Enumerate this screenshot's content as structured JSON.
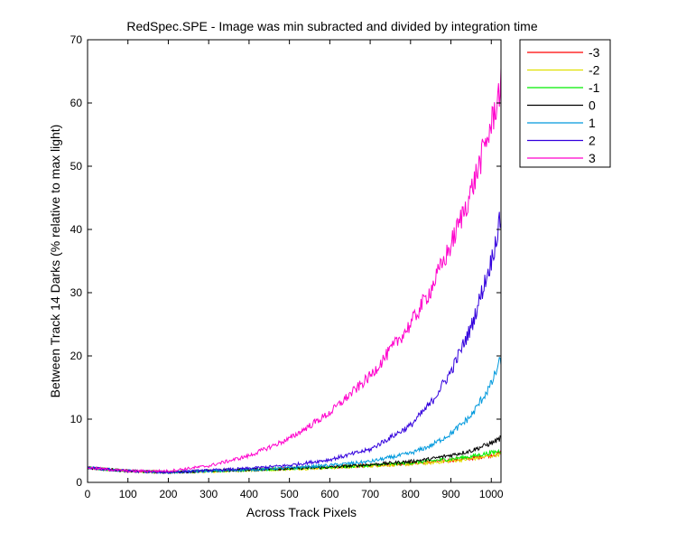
{
  "chart_data": {
    "type": "line",
    "title": "RedSpec.SPE - Image was min subracted and divided by integration time",
    "xlabel": "Across Track Pixels",
    "ylabel": "Between Track 14 Darks (% relative to max light)",
    "xlim": [
      0,
      1024
    ],
    "ylim": [
      0,
      70
    ],
    "xticks": [
      0,
      100,
      200,
      300,
      400,
      500,
      600,
      700,
      800,
      900,
      1000
    ],
    "yticks": [
      0,
      10,
      20,
      30,
      40,
      50,
      60,
      70
    ],
    "grid": false,
    "legend_position": "outside top-right",
    "series": [
      {
        "name": "-3",
        "color": "#ff0000",
        "x": [
          0,
          100,
          200,
          300,
          400,
          500,
          600,
          700,
          800,
          850,
          900,
          950,
          1000,
          1024
        ],
        "y": [
          2.3,
          1.8,
          1.6,
          1.8,
          2.0,
          2.2,
          2.4,
          2.7,
          3.0,
          3.2,
          3.5,
          3.8,
          4.3,
          4.6
        ]
      },
      {
        "name": "-2",
        "color": "#e0e000",
        "x": [
          0,
          100,
          200,
          300,
          400,
          500,
          600,
          700,
          800,
          850,
          900,
          950,
          1000,
          1024
        ],
        "y": [
          2.3,
          1.8,
          1.6,
          1.7,
          1.9,
          2.1,
          2.3,
          2.6,
          2.9,
          3.1,
          3.4,
          3.7,
          4.2,
          4.5
        ]
      },
      {
        "name": "-1",
        "color": "#00ee00",
        "x": [
          0,
          100,
          200,
          300,
          400,
          500,
          600,
          700,
          800,
          850,
          900,
          950,
          1000,
          1024
        ],
        "y": [
          2.3,
          1.8,
          1.6,
          1.8,
          2.0,
          2.2,
          2.4,
          2.7,
          3.1,
          3.4,
          3.7,
          4.1,
          4.7,
          5.0
        ]
      },
      {
        "name": "0",
        "color": "#000000",
        "x": [
          0,
          100,
          200,
          300,
          400,
          500,
          600,
          700,
          800,
          850,
          900,
          950,
          1000,
          1024
        ],
        "y": [
          2.3,
          1.8,
          1.6,
          1.8,
          2.0,
          2.2,
          2.4,
          2.8,
          3.3,
          3.7,
          4.3,
          5.0,
          6.2,
          7.0
        ]
      },
      {
        "name": "1",
        "color": "#0099dd",
        "x": [
          0,
          100,
          200,
          300,
          400,
          500,
          600,
          700,
          800,
          850,
          900,
          950,
          1000,
          1024
        ],
        "y": [
          2.3,
          1.8,
          1.6,
          1.8,
          2.0,
          2.3,
          2.7,
          3.3,
          4.6,
          5.8,
          7.7,
          10.5,
          15.5,
          19.5
        ]
      },
      {
        "name": "2",
        "color": "#3300dd",
        "x": [
          0,
          100,
          200,
          300,
          400,
          500,
          600,
          700,
          800,
          850,
          900,
          950,
          1000,
          1024
        ],
        "y": [
          2.3,
          1.8,
          1.6,
          1.9,
          2.2,
          2.7,
          3.6,
          5.2,
          9.0,
          12.5,
          17.5,
          24.5,
          35.0,
          42.0
        ]
      },
      {
        "name": "3",
        "color": "#ff00cc",
        "x": [
          0,
          100,
          200,
          300,
          400,
          500,
          600,
          700,
          800,
          850,
          900,
          950,
          1000,
          1024
        ],
        "y": [
          2.3,
          1.8,
          1.8,
          2.6,
          4.2,
          6.9,
          11.0,
          16.8,
          25.0,
          30.5,
          37.5,
          46.0,
          56.5,
          63.0
        ]
      }
    ]
  }
}
